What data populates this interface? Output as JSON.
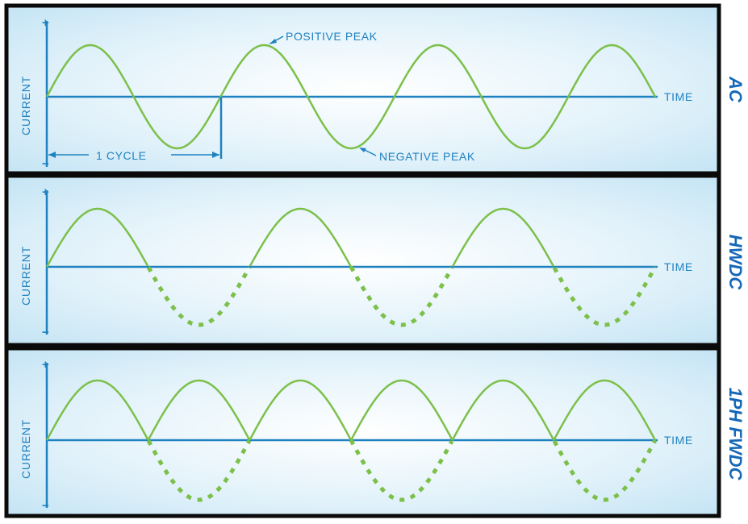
{
  "colors": {
    "background_edge": "#bfe2f3",
    "background_center": "#ffffff",
    "frame": "#0a0a0a",
    "axis": "#1f82c0",
    "wave": "#7cc04a",
    "title": "#1568b8"
  },
  "panels": [
    {
      "title": "AC",
      "y_label": "CURRENT",
      "x_label": "TIME",
      "plus": "+",
      "minus": "−",
      "waveform": "full-sine",
      "cycles": 3.5,
      "positive_half": "solid",
      "negative_half": "solid",
      "annotations": {
        "positive_peak": "POSITIVE PEAK",
        "negative_peak": "NEGATIVE PEAK",
        "cycle": "1 CYCLE"
      }
    },
    {
      "title": "HWDC",
      "y_label": "CURRENT",
      "x_label": "TIME",
      "plus": "+",
      "minus": "−",
      "waveform": "half-wave",
      "cycles": 3,
      "positive_half": "solid",
      "negative_half": "dotted"
    },
    {
      "title": "1PH FWDC",
      "y_label": "CURRENT",
      "x_label": "TIME",
      "plus": "+",
      "minus": "−",
      "waveform": "full-wave-rectified",
      "cycles": 3,
      "positive_half": "solid (rectified humps)",
      "negative_half": "dotted"
    }
  ]
}
